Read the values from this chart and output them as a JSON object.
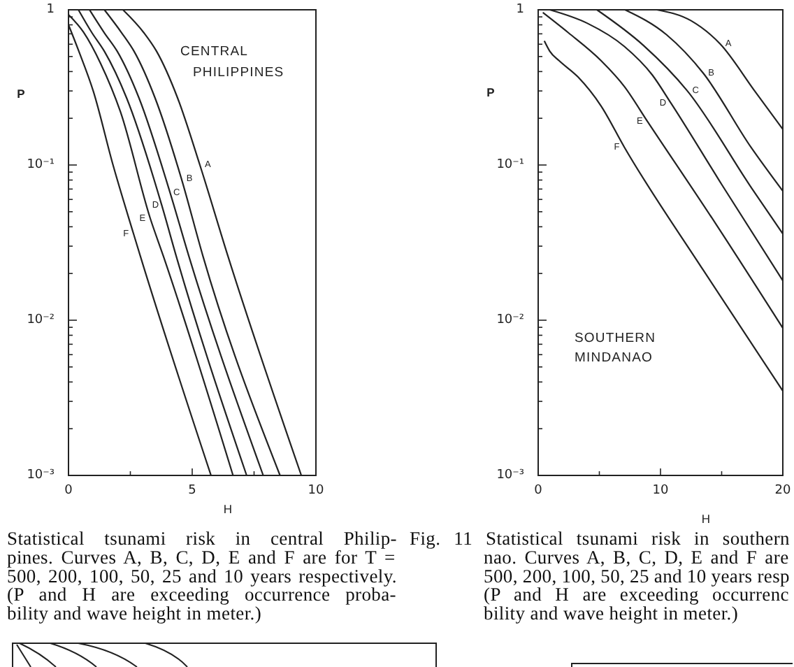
{
  "chart_data": [
    {
      "type": "line",
      "xlabel": "H",
      "ylabel": "P",
      "log": "y",
      "xlim": [
        0,
        10
      ],
      "xticks": [
        0,
        {
          "value": 2.5,
          "label": null
        },
        5,
        {
          "value": 7.5,
          "label": null
        },
        10
      ],
      "ylim": [
        0.001,
        1
      ],
      "yticks": [
        1,
        {
          "value": 0.9,
          "label": null
        },
        {
          "value": 0.8,
          "label": null
        },
        {
          "value": 0.7,
          "label": null
        },
        {
          "value": 0.6,
          "label": null
        },
        {
          "value": 0.5,
          "label": null
        },
        {
          "value": 0.4,
          "label": null
        },
        {
          "value": 0.3,
          "label": null
        },
        {
          "value": 0.2,
          "label": null
        },
        {
          "value": 0.1,
          "label": "10⁻¹"
        },
        {
          "value": 0.09,
          "label": null
        },
        {
          "value": 0.08,
          "label": null
        },
        {
          "value": 0.07,
          "label": null
        },
        {
          "value": 0.06,
          "label": null
        },
        {
          "value": 0.05,
          "label": null
        },
        {
          "value": 0.04,
          "label": null
        },
        {
          "value": 0.03,
          "label": null
        },
        {
          "value": 0.02,
          "label": null
        },
        {
          "value": 0.01,
          "label": "10⁻²"
        },
        {
          "value": 0.009,
          "label": null
        },
        {
          "value": 0.008,
          "label": null
        },
        {
          "value": 0.007,
          "label": null
        },
        {
          "value": 0.006,
          "label": null
        },
        {
          "value": 0.005,
          "label": null
        },
        {
          "value": 0.004,
          "label": null
        },
        {
          "value": 0.003,
          "label": null
        },
        {
          "value": 0.002,
          "label": null
        },
        {
          "value": 0.001,
          "label": "10⁻³"
        }
      ],
      "series": [
        {
          "name": "A",
          "color": "#222222",
          "x": [
            2.2,
            3.05,
            3.56,
            4.41,
            5.31,
            6.44,
            9.41
          ],
          "values": [
            1,
            0.71,
            0.54,
            0.27,
            0.1,
            0.026,
            0.001
          ]
        },
        {
          "name": "B",
          "color": "#222222",
          "x": [
            1.45,
            2.15,
            2.65,
            3.5,
            4.57,
            5.43,
            8.55
          ],
          "values": [
            1,
            0.71,
            0.54,
            0.27,
            0.081,
            0.026,
            0.001
          ]
        },
        {
          "name": "C",
          "color": "#222222",
          "x": [
            0.85,
            1.45,
            1.97,
            2.85,
            4.11,
            4.86,
            7.87
          ],
          "values": [
            1,
            0.71,
            0.54,
            0.27,
            0.066,
            0.026,
            0.001
          ]
        },
        {
          "name": "D",
          "color": "#222222",
          "x": [
            0.4,
            0.95,
            1.45,
            2.35,
            3.77,
            4.35,
            7.2
          ],
          "values": [
            1,
            0.71,
            0.54,
            0.27,
            0.055,
            0.026,
            0.001
          ]
        },
        {
          "name": "E",
          "color": "#222222",
          "x": [
            0,
            0.6,
            1.3,
            2.1,
            3.31,
            3.83,
            6.65
          ],
          "values": [
            0.93,
            0.72,
            0.45,
            0.22,
            0.045,
            0.026,
            0.001
          ]
        },
        {
          "name": "F",
          "color": "#222222",
          "x": [
            0,
            0.4,
            1.0,
            1.8,
            2.63,
            2.9,
            5.76
          ],
          "values": [
            0.8,
            0.55,
            0.3,
            0.1,
            0.036,
            0.026,
            0.001
          ]
        }
      ],
      "annotations": [
        "CENTRAL PHILIPPINES",
        "Statistical tsunami risk in central Philip-\npines. Curves A, B, C, D, E and F are for T =\n500, 200, 100, 50, 25 and 10 years respectively.\n(P and H are exceeding occurrence proba-\nbility and wave height in meter.)"
      ]
    },
    {
      "type": "line",
      "xlabel": "H",
      "ylabel": "P",
      "log": "y",
      "xlim": [
        0,
        20
      ],
      "xticks": [
        0,
        {
          "value": 5,
          "label": null
        },
        10,
        {
          "value": 15,
          "label": null
        },
        20
      ],
      "ylim": [
        0.001,
        1
      ],
      "yticks": [
        1,
        {
          "value": 0.9,
          "label": null
        },
        {
          "value": 0.8,
          "label": null
        },
        {
          "value": 0.7,
          "label": null
        },
        {
          "value": 0.6,
          "label": null
        },
        {
          "value": 0.5,
          "label": null
        },
        {
          "value": 0.4,
          "label": null
        },
        {
          "value": 0.3,
          "label": null
        },
        {
          "value": 0.2,
          "label": null
        },
        {
          "value": 0.1,
          "label": "10⁻¹"
        },
        {
          "value": 0.09,
          "label": null
        },
        {
          "value": 0.08,
          "label": null
        },
        {
          "value": 0.07,
          "label": null
        },
        {
          "value": 0.06,
          "label": null
        },
        {
          "value": 0.05,
          "label": null
        },
        {
          "value": 0.04,
          "label": null
        },
        {
          "value": 0.03,
          "label": null
        },
        {
          "value": 0.02,
          "label": null
        },
        {
          "value": 0.01,
          "label": "10⁻²"
        },
        {
          "value": 0.009,
          "label": null
        },
        {
          "value": 0.008,
          "label": null
        },
        {
          "value": 0.007,
          "label": null
        },
        {
          "value": 0.006,
          "label": null
        },
        {
          "value": 0.005,
          "label": null
        },
        {
          "value": 0.004,
          "label": null
        },
        {
          "value": 0.003,
          "label": null
        },
        {
          "value": 0.002,
          "label": null
        },
        {
          "value": 0.001,
          "label": "10⁻³"
        }
      ],
      "series": [
        {
          "name": "A",
          "color": "#222222",
          "x": [
            9.7,
            12.5,
            14.9,
            17.7,
            20
          ],
          "values": [
            1,
            0.85,
            0.6,
            0.3,
            0.17
          ]
        },
        {
          "name": "B",
          "color": "#222222",
          "x": [
            7.1,
            10.5,
            13.5,
            17.4,
            20
          ],
          "values": [
            1,
            0.69,
            0.39,
            0.13,
            0.068
          ]
        },
        {
          "name": "C",
          "color": "#222222",
          "x": [
            4.8,
            8.6,
            12.2,
            17.5,
            20
          ],
          "values": [
            1,
            0.59,
            0.3,
            0.07,
            0.036
          ]
        },
        {
          "name": "D",
          "color": "#222222",
          "x": [
            0.95,
            4.0,
            7.05,
            9.33,
            10.86,
            15,
            20
          ],
          "values": [
            1,
            0.82,
            0.58,
            0.38,
            0.25,
            0.075,
            0.018
          ]
        },
        {
          "name": "E",
          "color": "#222222",
          "x": [
            0.38,
            2.48,
            5.14,
            7.05,
            8.95,
            14.5,
            20
          ],
          "values": [
            0.96,
            0.71,
            0.47,
            0.32,
            0.19,
            0.042,
            0.0089
          ]
        },
        {
          "name": "F",
          "color": "#222222",
          "x": [
            0.5,
            0.95,
            1.71,
            3.24,
            5.14,
            7.05,
            13.5,
            20
          ],
          "values": [
            0.63,
            0.54,
            0.47,
            0.37,
            0.24,
            0.13,
            0.021,
            0.0035
          ]
        }
      ],
      "annotations": [
        "SOUTHERN MINDANAO",
        "Fig. 11 Statistical tsunami risk in southern\nnao. Curves A, B, C, D, E and F are\n500, 200, 100, 50, 25 and 10 years resp\n(P and H are exceeding occurrenc\nbility and wave height in meter.)"
      ]
    }
  ]
}
